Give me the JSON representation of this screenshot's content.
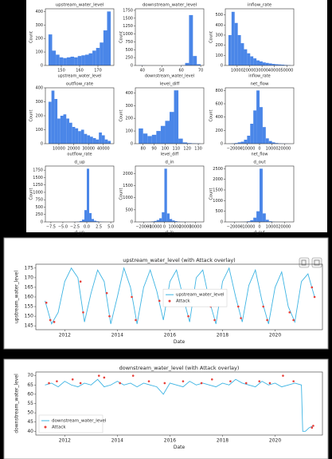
{
  "chart_data": [
    {
      "type": "histogram",
      "title": "upstream_water_level",
      "xlabel": "upstream_water_level",
      "ylabel": "Count",
      "color": "#4a86e8",
      "bins": [
        143,
        145,
        147,
        149,
        151,
        153,
        155,
        157,
        159,
        161,
        163,
        165,
        167,
        169,
        171,
        173,
        175,
        177
      ],
      "counts": [
        230,
        110,
        80,
        60,
        55,
        60,
        65,
        60,
        70,
        75,
        80,
        90,
        110,
        130,
        170,
        260,
        400
      ],
      "xlim": [
        141.3,
        178.7
      ],
      "xticks": [
        150,
        160,
        170
      ],
      "ylim": [
        0,
        420
      ],
      "yticks": [
        0,
        100,
        200,
        300,
        400
      ]
    },
    {
      "type": "histogram",
      "title": "downstream_water_level",
      "xlabel": "downstream_water_level",
      "ylabel": "Count",
      "color": "#4a86e8",
      "bins": [
        38,
        40,
        42,
        44,
        46,
        48,
        50,
        52,
        54,
        56,
        58,
        60,
        62,
        64,
        66,
        68,
        70
      ],
      "counts": [
        5,
        3,
        0,
        0,
        0,
        0,
        0,
        0,
        0,
        0,
        0,
        10,
        80,
        1600,
        300,
        40
      ],
      "xlim": [
        36.4,
        71.6
      ],
      "xticks": [
        40,
        50,
        60,
        70
      ],
      "ylim": [
        0,
        1800
      ],
      "yticks": [
        0,
        250,
        500,
        750,
        1000,
        1250,
        1500,
        1750
      ]
    },
    {
      "type": "histogram",
      "title": "inflow_rate",
      "xlabel": "inflow_rate",
      "ylabel": "Count",
      "color": "#4a86e8",
      "bins": [
        3000,
        5500,
        8000,
        10500,
        13000,
        15500,
        18000,
        20500,
        23000,
        25500,
        28000,
        30500,
        33000,
        35500,
        38000,
        40500,
        43000,
        45500,
        48000,
        50500,
        53000
      ],
      "counts": [
        300,
        530,
        420,
        300,
        220,
        160,
        120,
        90,
        70,
        50,
        40,
        30,
        25,
        20,
        15,
        12,
        10,
        8,
        5,
        3
      ],
      "xlim": [
        500,
        55500
      ],
      "xticks": [
        10000,
        20000,
        30000,
        40000,
        50000
      ],
      "ylim": [
        0,
        560
      ],
      "yticks": [
        0,
        100,
        200,
        300,
        400,
        500
      ]
    },
    {
      "type": "histogram",
      "title": "outflow_rate",
      "xlabel": "outflow_rate",
      "ylabel": "Count",
      "color": "#4a86e8",
      "bins": [
        3000,
        5000,
        7000,
        9000,
        11000,
        13000,
        15000,
        17000,
        19000,
        21000,
        23000,
        25000,
        27000,
        29000,
        31000,
        33000,
        35000,
        37000,
        39000,
        41000,
        43000,
        45000
      ],
      "counts": [
        300,
        380,
        320,
        180,
        200,
        210,
        180,
        150,
        120,
        110,
        90,
        100,
        70,
        60,
        50,
        40,
        30,
        80,
        60,
        30,
        20
      ],
      "xlim": [
        900,
        47100
      ],
      "xticks": [
        10000,
        20000,
        30000,
        40000
      ],
      "ylim": [
        0,
        400
      ],
      "yticks": [
        0,
        100,
        200,
        300,
        400
      ]
    },
    {
      "type": "histogram",
      "title": "level_diff",
      "xlabel": "level_diff",
      "ylabel": "Count",
      "color": "#4a86e8",
      "bins": [
        76,
        80,
        84,
        88,
        92,
        96,
        100,
        104,
        108,
        112,
        116,
        120,
        124,
        128,
        132
      ],
      "counts": [
        120,
        80,
        60,
        70,
        100,
        140,
        180,
        250,
        420,
        40,
        10,
        5,
        3,
        2
      ],
      "xlim": [
        73,
        135
      ],
      "xticks": [
        80,
        90,
        100,
        110,
        120,
        130
      ],
      "ylim": [
        0,
        440
      ],
      "yticks": [
        0,
        100,
        200,
        300,
        400
      ]
    },
    {
      "type": "histogram",
      "title": "net_flow",
      "xlabel": "net_flow",
      "ylabel": "Count",
      "color": "#4a86e8",
      "bins": [
        -25000,
        -22500,
        -20000,
        -17500,
        -15000,
        -12500,
        -10000,
        -7500,
        -5000,
        -2500,
        0,
        2500,
        5000,
        7500,
        10000,
        12500,
        15000,
        17500,
        20000,
        22500,
        25000
      ],
      "counts": [
        2,
        5,
        10,
        20,
        30,
        60,
        120,
        300,
        500,
        800,
        550,
        250,
        80,
        40,
        20,
        10,
        5,
        3,
        2,
        1
      ],
      "xlim": [
        -27500,
        27500
      ],
      "xticks": [
        {
          "value": -20000,
          "label": "−20000"
        },
        {
          "value": -10000,
          "label": "−10000"
        },
        0,
        10000,
        20000
      ],
      "ylim": [
        0,
        840
      ],
      "yticks": [
        0,
        200,
        400,
        600,
        800
      ]
    },
    {
      "type": "histogram",
      "title": "d_up",
      "xlabel": "d_up",
      "ylabel": "Count",
      "color": "#4a86e8",
      "bins": [
        -8,
        -7.5,
        -7,
        -6.5,
        -6,
        -5.5,
        -5,
        -4.5,
        -4,
        -3.5,
        -3,
        -2.5,
        -2,
        -1.5,
        -1,
        -0.5,
        0,
        0.5,
        1,
        1.5,
        2,
        2.5,
        3,
        3.5,
        4,
        4.5,
        5
      ],
      "counts": [
        0,
        0,
        0,
        0,
        0,
        0,
        0,
        0,
        0,
        0,
        2,
        5,
        10,
        30,
        80,
        400,
        1800,
        300,
        100,
        40,
        20,
        10,
        5,
        2,
        1,
        0
      ],
      "xlim": [
        -8.65,
        5.65
      ],
      "xticks": [
        {
          "value": -7.5,
          "label": "−7.5"
        },
        {
          "value": -5,
          "label": "−5.0"
        },
        {
          "value": -2.5,
          "label": "−2.5"
        },
        {
          "value": 0,
          "label": "0.0"
        },
        2.5,
        {
          "value": 5,
          "label": "5.0"
        }
      ],
      "ylim": [
        0,
        1890
      ],
      "yticks": [
        0,
        250,
        500,
        750,
        1000,
        1250,
        1500,
        1750
      ]
    },
    {
      "type": "histogram",
      "title": "d_in",
      "xlabel": "d_in",
      "ylabel": "Count",
      "color": "#4a86e8",
      "bins": [
        -25000,
        -22500,
        -20000,
        -17500,
        -15000,
        -12500,
        -10000,
        -7500,
        -5000,
        -2500,
        0,
        2500,
        5000,
        7500,
        10000,
        12500,
        15000,
        17500,
        20000,
        22500,
        25000,
        27500,
        30000,
        32500,
        35000
      ],
      "counts": [
        1,
        2,
        3,
        5,
        10,
        20,
        40,
        80,
        150,
        400,
        2200,
        350,
        120,
        60,
        30,
        15,
        8,
        5,
        3,
        2,
        1,
        1,
        0,
        1
      ],
      "xlim": [
        -28000,
        38000
      ],
      "xticks": [
        {
          "value": -20000,
          "label": "−20000"
        },
        {
          "value": -10000,
          "label": "−10000"
        },
        0,
        10000,
        20000,
        30000
      ],
      "ylim": [
        0,
        2310
      ],
      "yticks": [
        0,
        500,
        1000,
        1500,
        2000
      ]
    },
    {
      "type": "histogram",
      "title": "d_out",
      "xlabel": "d_out",
      "ylabel": "Count",
      "color": "#4a86e8",
      "bins": [
        -25000,
        -22500,
        -20000,
        -17500,
        -15000,
        -12500,
        -10000,
        -7500,
        -5000,
        -2500,
        0,
        2500,
        5000,
        7500,
        10000,
        12500,
        15000,
        17500,
        20000,
        22500,
        25000
      ],
      "counts": [
        1,
        1,
        2,
        3,
        5,
        10,
        30,
        80,
        200,
        500,
        2500,
        400,
        100,
        30,
        10,
        5,
        3,
        2,
        1,
        1
      ],
      "xlim": [
        -27500,
        27500
      ],
      "xticks": [
        {
          "value": -20000,
          "label": "−20000"
        },
        {
          "value": -10000,
          "label": "−10000"
        },
        0,
        10000,
        20000
      ],
      "ylim": [
        0,
        2625
      ],
      "yticks": [
        0,
        500,
        1000,
        1500,
        2000,
        2500
      ]
    },
    {
      "type": "line",
      "title": "upstream_water_level (with Attack overlay)",
      "xlabel": "Date",
      "ylabel": "upstream_water_level",
      "legend": "center",
      "x": [
        2011.25,
        2011.5,
        2011.75,
        2012,
        2012.25,
        2012.5,
        2012.75,
        2013,
        2013.25,
        2013.5,
        2013.75,
        2014,
        2014.25,
        2014.5,
        2014.75,
        2015,
        2015.25,
        2015.5,
        2015.75,
        2016,
        2016.25,
        2016.5,
        2016.75,
        2017,
        2017.25,
        2017.5,
        2017.75,
        2018,
        2018.25,
        2018.5,
        2018.75,
        2019,
        2019.25,
        2019.5,
        2019.75,
        2020,
        2020.25,
        2020.5,
        2020.75,
        2021,
        2021.25,
        2021.5
      ],
      "series": [
        {
          "name": "upstream_water_level",
          "style": "line",
          "color": "#3db4e3",
          "values": [
            158,
            146,
            152,
            168,
            175,
            170,
            147,
            162,
            174,
            168,
            146,
            160,
            175,
            165,
            146,
            165,
            174,
            163,
            148,
            168,
            174,
            160,
            147,
            170,
            174,
            158,
            146,
            168,
            175,
            160,
            147,
            166,
            174,
            158,
            146,
            165,
            173,
            155,
            147,
            168,
            172,
            160
          ]
        },
        {
          "name": "Attack",
          "style": "points",
          "color": "#e8403a",
          "x": [
            2011.3,
            2011.45,
            2011.6,
            2012.6,
            2012.7,
            2013.6,
            2013.7,
            2014.55,
            2014.7,
            2015.6,
            2016.55,
            2016.7,
            2017.55,
            2017.7,
            2018.6,
            2018.7,
            2019.55,
            2019.7,
            2020.55,
            2020.7,
            2021.4,
            2021.5
          ],
          "values": [
            157,
            148,
            147,
            168,
            152,
            162,
            150,
            160,
            148,
            158,
            158,
            150,
            155,
            148,
            155,
            149,
            155,
            148,
            152,
            148,
            165,
            160
          ]
        }
      ],
      "xlim": [
        2010.9,
        2021.8
      ],
      "xticks": [
        2012,
        2014,
        2016,
        2018,
        2020
      ],
      "ylim": [
        143,
        177
      ],
      "yticks": [
        145,
        150,
        155,
        160,
        165,
        170,
        175
      ]
    },
    {
      "type": "line",
      "title": "downstream_water_level (with Attack overlay)",
      "xlabel": "Date",
      "ylabel": "downstream_water_level",
      "legend": "lower left",
      "x": [
        2011.25,
        2011.5,
        2011.75,
        2012,
        2012.25,
        2012.5,
        2012.75,
        2013,
        2013.25,
        2013.5,
        2013.75,
        2014,
        2014.25,
        2014.5,
        2014.75,
        2015,
        2015.25,
        2015.5,
        2015.75,
        2016,
        2016.25,
        2016.5,
        2016.75,
        2017,
        2017.25,
        2017.5,
        2017.75,
        2018,
        2018.25,
        2018.5,
        2018.75,
        2019,
        2019.25,
        2019.5,
        2019.75,
        2020,
        2020.25,
        2020.5,
        2020.75,
        2021,
        2021.05,
        2021.15,
        2021.3,
        2021.45
      ],
      "series": [
        {
          "name": "downstream_water_level",
          "style": "line",
          "color": "#3db4e3",
          "values": [
            65,
            66,
            64,
            67,
            65,
            64,
            66,
            65,
            68,
            64,
            65,
            67,
            65,
            66,
            64,
            66,
            65,
            64,
            60,
            66,
            65,
            64,
            67,
            65,
            66,
            65,
            64,
            66,
            65,
            68,
            66,
            65,
            64,
            67,
            65,
            66,
            64,
            65,
            66,
            65,
            40,
            40,
            42,
            43
          ]
        },
        {
          "name": "Attack",
          "style": "points",
          "color": "#e8403a",
          "x": [
            2011.4,
            2011.7,
            2012.3,
            2012.6,
            2013.3,
            2013.5,
            2014.1,
            2014.6,
            2015.2,
            2015.8,
            2016.5,
            2017.2,
            2017.6,
            2018.3,
            2018.9,
            2019.4,
            2019.8,
            2020.3,
            2020.7,
            2021.4,
            2021.45
          ],
          "values": [
            66,
            67,
            68,
            66,
            70,
            69,
            66,
            70,
            67,
            66,
            67,
            66,
            68,
            67,
            66,
            67,
            66,
            70,
            67,
            42,
            43
          ]
        }
      ],
      "xlim": [
        2010.9,
        2021.8
      ],
      "xticks": [
        2012,
        2014,
        2016,
        2018,
        2020
      ],
      "ylim": [
        38,
        72
      ],
      "yticks": [
        40,
        45,
        50,
        55,
        60,
        65,
        70
      ]
    }
  ]
}
